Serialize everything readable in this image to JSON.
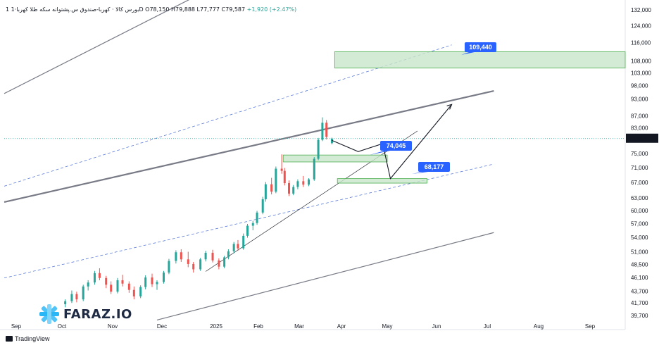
{
  "header": {
    "symbol": "1 بورس کالا · کهربا-صندوق س.پشتوانه سکه طلا کهربا·1D",
    "ohlc": "O78,150  H79,888  L77,777  C79,587",
    "change": "+1,920 (+2.47%)"
  },
  "footer": {
    "brand": "TradingView"
  },
  "logo": {
    "text": "FARAZ.IO"
  },
  "colors": {
    "up": "#26a69a",
    "down": "#ef5350",
    "label": "#2962ff",
    "zone": "#c8e6c9",
    "zone_border": "#4caf50",
    "channel": "#787b86",
    "dash": "#5b7bd5"
  },
  "chart_data": {
    "type": "candlestick",
    "title": "",
    "y_ticks": [
      "132,000",
      "124,000",
      "116,000",
      "108,000",
      "103,000",
      "98,000",
      "93,000",
      "87,000",
      "83,000",
      "79,587",
      "75,000",
      "71,000",
      "67,000",
      "63,000",
      "60,000",
      "57,000",
      "54,000",
      "51,000",
      "48,500",
      "46,100",
      "43,700",
      "41,700",
      "39,700"
    ],
    "y_scale": "log",
    "ylim": [
      38000,
      135000
    ],
    "x_ticks": [
      "Sep",
      "Oct",
      "Nov",
      "Dec",
      "2025",
      "Feb",
      "Mar",
      "Apr",
      "May",
      "Jun",
      "Jul",
      "Aug",
      "Sep"
    ],
    "last_price": "79,587",
    "price_labels": [
      "109,440",
      "74,045",
      "68,177"
    ],
    "zones": [
      {
        "from": "Mar 27",
        "to": "Sep",
        "low": 105000,
        "high": 112000
      },
      {
        "from": "Feb 18",
        "to": "May",
        "low": 72600,
        "high": 74600
      },
      {
        "from": "Mar 29",
        "to": "May 26",
        "low": 66800,
        "high": 68000
      }
    ],
    "candles_summary": "Daily candles rising from about 42,000 (Oct) to 86,000 (late Mar)",
    "candles": [
      {
        "d": "Oct 3",
        "o": 41500,
        "h": 42300,
        "l": 41000,
        "c": 42000
      },
      {
        "d": "Oct 7",
        "o": 42000,
        "h": 43800,
        "l": 41700,
        "c": 43200
      },
      {
        "d": "Oct 10",
        "o": 43200,
        "h": 43600,
        "l": 41800,
        "c": 42300
      },
      {
        "d": "Oct 14",
        "o": 42300,
        "h": 44800,
        "l": 42000,
        "c": 44500
      },
      {
        "d": "Oct 17",
        "o": 44500,
        "h": 45600,
        "l": 43800,
        "c": 45200
      },
      {
        "d": "Oct 21",
        "o": 45200,
        "h": 47300,
        "l": 44800,
        "c": 46900
      },
      {
        "d": "Oct 24",
        "o": 46900,
        "h": 47800,
        "l": 45600,
        "c": 46000
      },
      {
        "d": "Oct 28",
        "o": 46000,
        "h": 46400,
        "l": 44200,
        "c": 44800
      },
      {
        "d": "Oct 31",
        "o": 44800,
        "h": 45400,
        "l": 43200,
        "c": 43600
      },
      {
        "d": "Nov 4",
        "o": 43600,
        "h": 46000,
        "l": 43300,
        "c": 45600
      },
      {
        "d": "Nov 7",
        "o": 45600,
        "h": 46600,
        "l": 44500,
        "c": 45000
      },
      {
        "d": "Nov 11",
        "o": 45000,
        "h": 45400,
        "l": 43400,
        "c": 43900
      },
      {
        "d": "Nov 14",
        "o": 43900,
        "h": 44500,
        "l": 42300,
        "c": 42800
      },
      {
        "d": "Nov 18",
        "o": 42800,
        "h": 44700,
        "l": 42500,
        "c": 44400
      },
      {
        "d": "Nov 21",
        "o": 44400,
        "h": 46500,
        "l": 44000,
        "c": 46100
      },
      {
        "d": "Nov 25",
        "o": 46100,
        "h": 46800,
        "l": 44400,
        "c": 44900
      },
      {
        "d": "Nov 28",
        "o": 44900,
        "h": 45600,
        "l": 43900,
        "c": 45300
      },
      {
        "d": "Dec 2",
        "o": 45300,
        "h": 47300,
        "l": 45000,
        "c": 47000
      },
      {
        "d": "Dec 5",
        "o": 47000,
        "h": 49600,
        "l": 46700,
        "c": 49200
      },
      {
        "d": "Dec 9",
        "o": 49200,
        "h": 51300,
        "l": 48700,
        "c": 50900
      },
      {
        "d": "Dec 12",
        "o": 50900,
        "h": 51500,
        "l": 49000,
        "c": 49500
      },
      {
        "d": "Dec 16",
        "o": 49500,
        "h": 51000,
        "l": 48000,
        "c": 48600
      },
      {
        "d": "Dec 19",
        "o": 48600,
        "h": 49000,
        "l": 47000,
        "c": 47600
      },
      {
        "d": "Dec 23",
        "o": 47600,
        "h": 49800,
        "l": 47300,
        "c": 49500
      },
      {
        "d": "Dec 26",
        "o": 49500,
        "h": 51200,
        "l": 49100,
        "c": 50800
      },
      {
        "d": "Dec 30",
        "o": 50800,
        "h": 51400,
        "l": 48900,
        "c": 49300
      },
      {
        "d": "Jan 3",
        "o": 49300,
        "h": 49700,
        "l": 47600,
        "c": 48100
      },
      {
        "d": "Jan 7",
        "o": 48100,
        "h": 50200,
        "l": 47800,
        "c": 49900
      },
      {
        "d": "Jan 10",
        "o": 49900,
        "h": 51500,
        "l": 49500,
        "c": 51100
      },
      {
        "d": "Jan 14",
        "o": 51100,
        "h": 53000,
        "l": 50700,
        "c": 52600
      },
      {
        "d": "Jan 17",
        "o": 52600,
        "h": 53400,
        "l": 51200,
        "c": 51700
      },
      {
        "d": "Jan 21",
        "o": 51700,
        "h": 54800,
        "l": 51400,
        "c": 54300
      },
      {
        "d": "Jan 24",
        "o": 54300,
        "h": 56900,
        "l": 53900,
        "c": 56500
      },
      {
        "d": "Jan 28",
        "o": 56500,
        "h": 57600,
        "l": 55500,
        "c": 57100
      },
      {
        "d": "Jan 31",
        "o": 57100,
        "h": 59900,
        "l": 56700,
        "c": 59500
      },
      {
        "d": "Feb 4",
        "o": 59500,
        "h": 63300,
        "l": 59100,
        "c": 62700
      },
      {
        "d": "Feb 6",
        "o": 62700,
        "h": 67100,
        "l": 62100,
        "c": 66500
      },
      {
        "d": "Feb 10",
        "o": 66500,
        "h": 68200,
        "l": 63900,
        "c": 64600
      },
      {
        "d": "Feb 13",
        "o": 64600,
        "h": 71300,
        "l": 64200,
        "c": 70700
      },
      {
        "d": "Feb 17",
        "o": 70700,
        "h": 74800,
        "l": 69300,
        "c": 70100
      },
      {
        "d": "Feb 19",
        "o": 70100,
        "h": 70900,
        "l": 66200,
        "c": 66800
      },
      {
        "d": "Feb 22",
        "o": 66800,
        "h": 67500,
        "l": 63500,
        "c": 64100
      },
      {
        "d": "Feb 25",
        "o": 64100,
        "h": 66300,
        "l": 63700,
        "c": 65800
      },
      {
        "d": "Feb 28",
        "o": 65800,
        "h": 67800,
        "l": 65200,
        "c": 67300
      },
      {
        "d": "Mar 4",
        "o": 67300,
        "h": 68700,
        "l": 65800,
        "c": 66400
      },
      {
        "d": "Mar 8",
        "o": 66400,
        "h": 68100,
        "l": 66000,
        "c": 67800
      },
      {
        "d": "Mar 12",
        "o": 67800,
        "h": 74000,
        "l": 67400,
        "c": 73500
      },
      {
        "d": "Mar 15",
        "o": 73500,
        "h": 79800,
        "l": 73100,
        "c": 79200
      },
      {
        "d": "Mar 18",
        "o": 79200,
        "h": 86500,
        "l": 78800,
        "c": 84700
      },
      {
        "d": "Mar 21",
        "o": 84700,
        "h": 85600,
        "l": 79300,
        "c": 80100
      },
      {
        "d": "Mar 25",
        "o": 78150,
        "h": 79888,
        "l": 77777,
        "c": 79587
      }
    ]
  }
}
